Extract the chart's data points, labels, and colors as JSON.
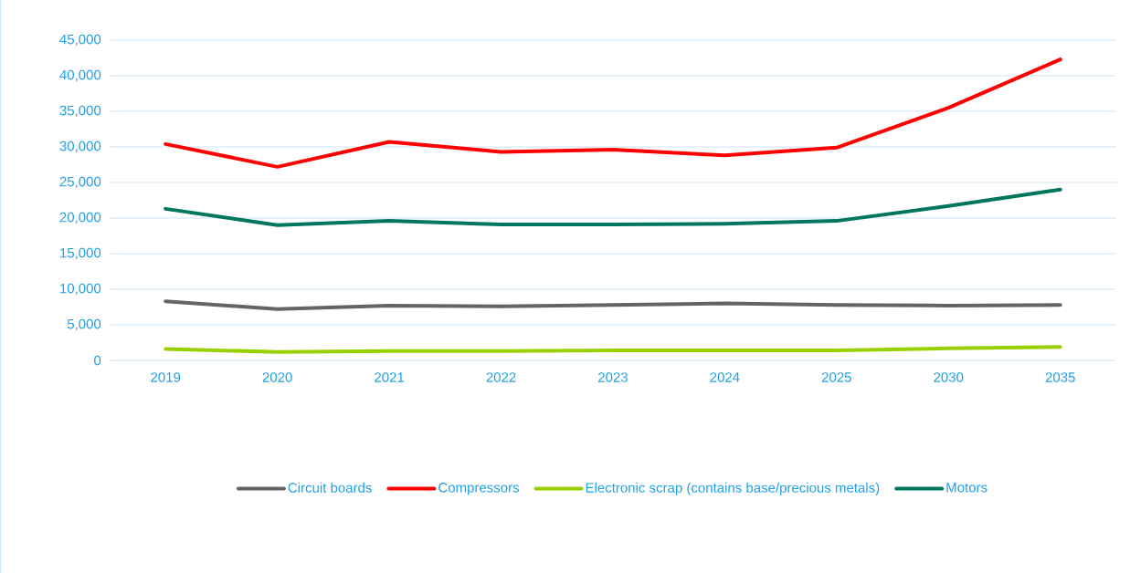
{
  "chart_data": {
    "type": "line",
    "categories": [
      "2019",
      "2020",
      "2021",
      "2022",
      "2023",
      "2024",
      "2025",
      "2030",
      "2035"
    ],
    "series": [
      {
        "name": "Circuit boards",
        "color": "#646464",
        "values": [
          8300,
          7200,
          7700,
          7600,
          7800,
          8000,
          7800,
          7700,
          7800
        ]
      },
      {
        "name": "Compressors",
        "color": "#ff0000",
        "values": [
          30400,
          27200,
          30700,
          29300,
          29600,
          28800,
          29900,
          35500,
          42300
        ]
      },
      {
        "name": "Electronic scrap (contains base/precious metals)",
        "color": "#99d100",
        "values": [
          1600,
          1200,
          1300,
          1300,
          1400,
          1400,
          1400,
          1700,
          1900
        ]
      },
      {
        "name": "Motors",
        "color": "#00765e",
        "values": [
          21300,
          19000,
          19600,
          19100,
          19100,
          19200,
          19600,
          21700,
          24000
        ]
      }
    ],
    "ylim": [
      0,
      45000
    ],
    "yticks": [
      0,
      {
        "value": 5000,
        "label": "5,000"
      },
      {
        "value": 10000,
        "label": "10,000"
      },
      {
        "value": 15000,
        "label": "15,000"
      },
      {
        "value": 20000,
        "label": "20,000"
      },
      {
        "value": 25000,
        "label": "25,000"
      },
      {
        "value": 30000,
        "label": "30,000"
      },
      {
        "value": 35000,
        "label": "35,000"
      },
      {
        "value": 40000,
        "label": "40,000"
      },
      {
        "value": 45000,
        "label": "45,000"
      }
    ],
    "grid": "y",
    "legend": "bottom",
    "marker": "none",
    "line_style": "solid"
  }
}
